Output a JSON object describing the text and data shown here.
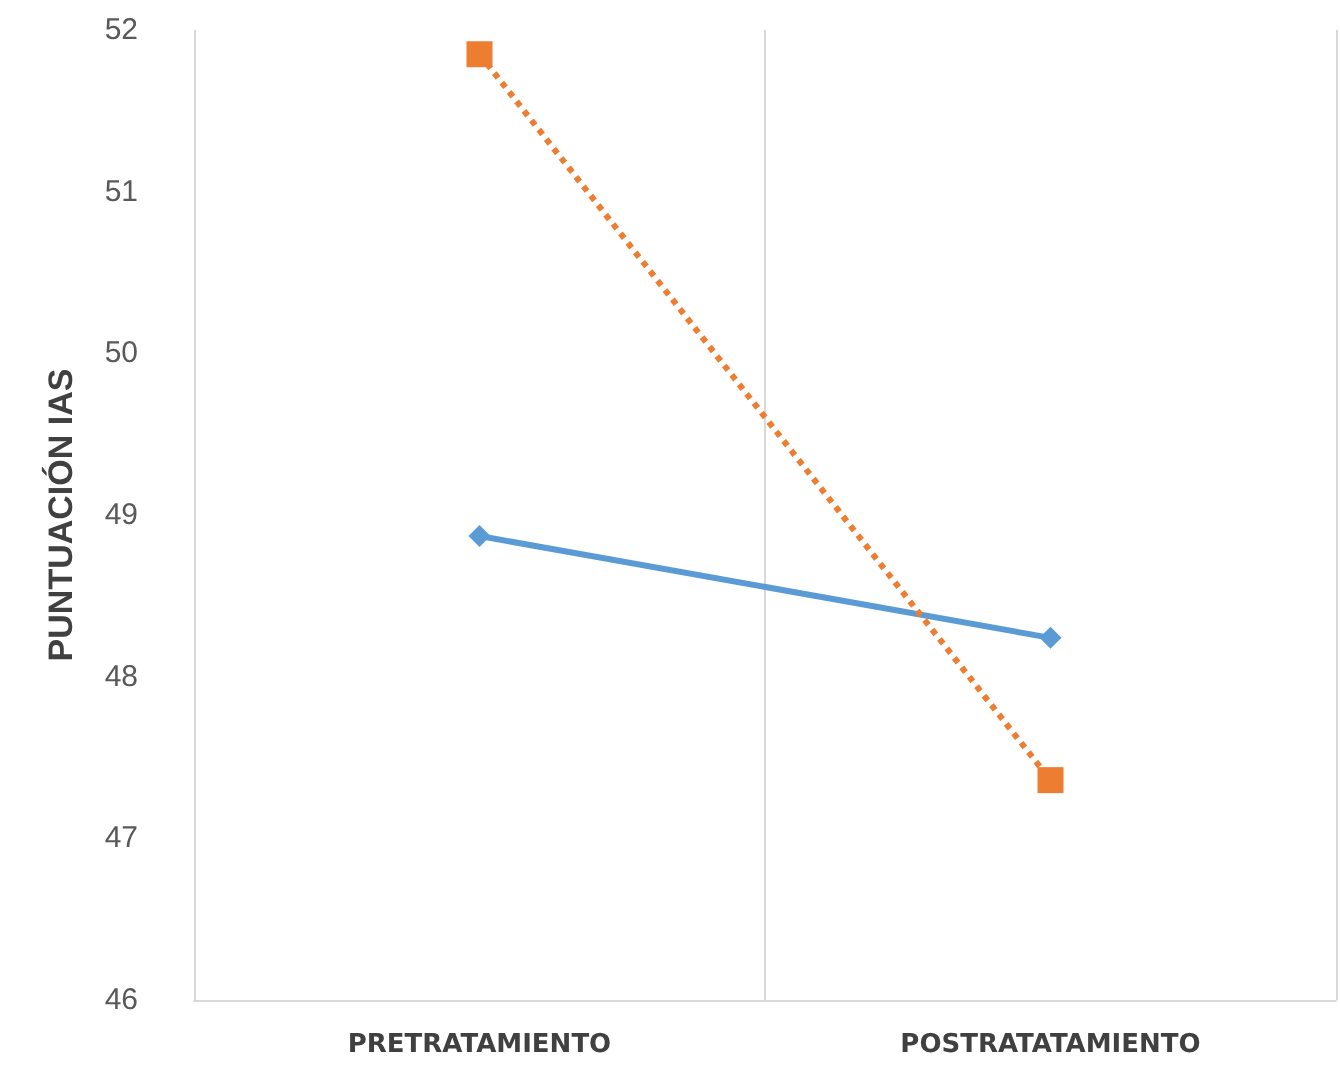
{
  "chart_data": {
    "type": "line",
    "ylabel": "PUNTUACIÓN IAS",
    "categories": [
      "PRETRATAMIENTO",
      "POSTRATATAMIENTO"
    ],
    "series": [
      {
        "color": "#5b9bd5",
        "values": [
          48.87,
          48.24
        ],
        "marker": "diamond",
        "line_style": "solid"
      },
      {
        "color": "#ed7d31",
        "values": [
          51.85,
          47.36
        ],
        "marker": "square",
        "line_style": "dotted"
      }
    ],
    "ylim": [
      46,
      52
    ],
    "yticks": [
      46,
      47,
      48,
      49,
      50,
      51,
      52
    ],
    "grid": "x"
  }
}
